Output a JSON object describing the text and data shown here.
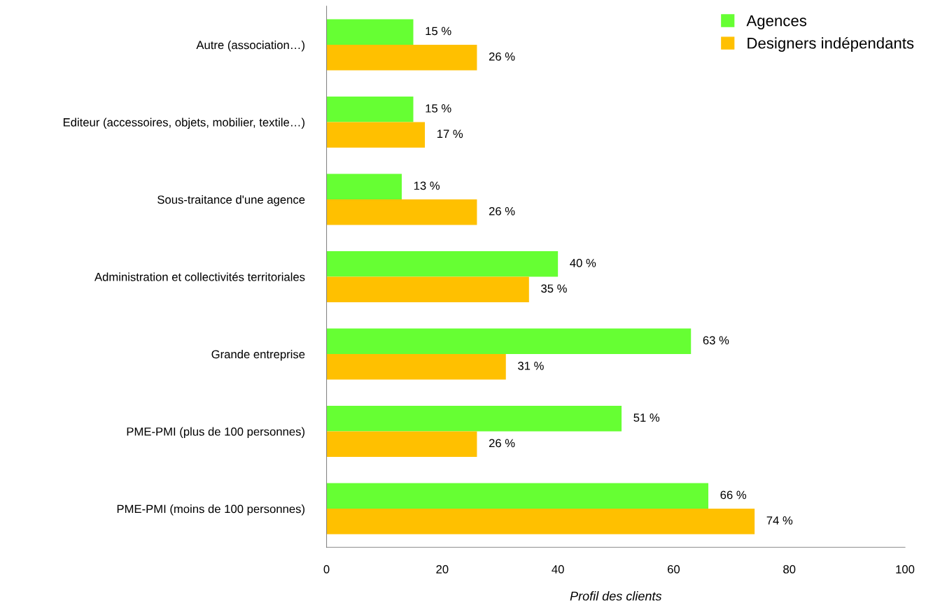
{
  "chart_data": {
    "type": "bar",
    "orientation": "horizontal",
    "xlabel": "Profil des clients",
    "categories": [
      "Autre (association…)",
      "Editeur (accessoires, objets, mobilier, textile…)",
      "Sous-traitance d'une agence",
      "Administration et collectivités territoriales",
      "Grande entreprise",
      "PME-PMI (plus de 100 personnes)",
      "PME-PMI (moins de 100 personnes)"
    ],
    "series": [
      {
        "name": "Agences",
        "color": "#66ff33",
        "values": [
          15,
          15,
          13,
          40,
          63,
          51,
          66
        ],
        "value_labels": [
          "15 %",
          "15 %",
          "13 %",
          "40 %",
          "63 %",
          "51 %",
          "66 %"
        ]
      },
      {
        "name": "Designers indépendants",
        "color": "#ffc000",
        "values": [
          26,
          17,
          26,
          35,
          31,
          26,
          74
        ],
        "value_labels": [
          "26 %",
          "17 %",
          "26 %",
          "35 %",
          "31 %",
          "26 %",
          "74 %"
        ]
      }
    ],
    "xlim": [
      0,
      100
    ],
    "xticks": [
      0,
      20,
      40,
      60,
      80,
      100
    ],
    "grid": false,
    "legend": "top right"
  }
}
